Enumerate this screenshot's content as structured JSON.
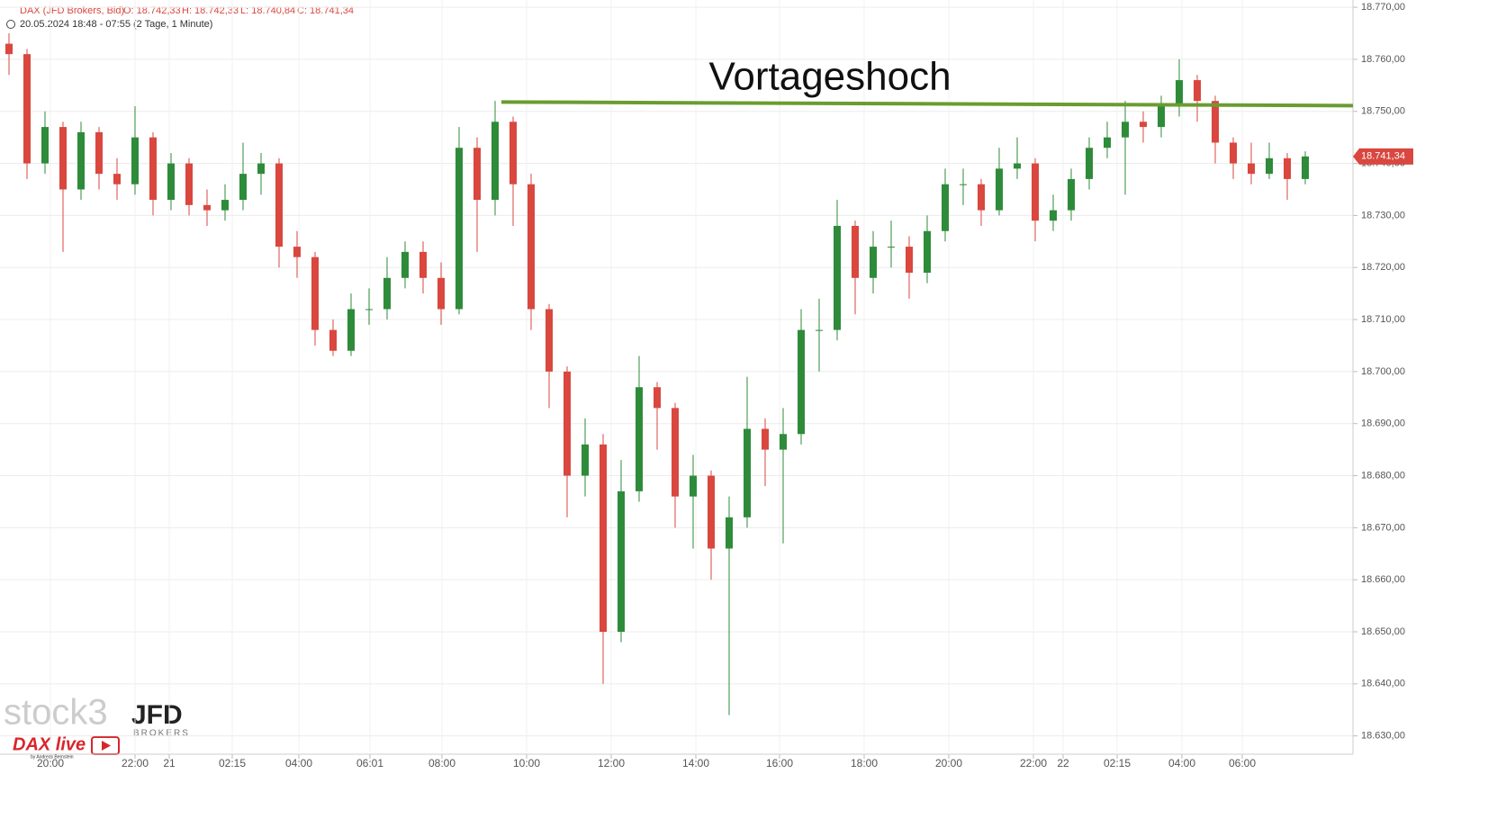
{
  "chart_data": {
    "type": "candlestick",
    "title": "DAX (JFD Brokers, Bid)",
    "ohlc_header": [
      "O: 18.742,33",
      "H: 18.742,33",
      "L: 18.740,84",
      "C: 18.741,34"
    ],
    "subtitle": "20.05.2024 18:48 - 07:55  (2 Tage, 1 Minute)",
    "x": [
      5,
      15,
      25,
      35,
      45,
      55,
      65,
      75,
      85,
      95,
      105,
      115,
      125,
      135,
      145,
      155,
      165,
      175,
      185,
      195,
      205,
      215,
      225,
      235,
      245,
      255,
      265,
      275,
      285,
      295,
      305,
      315,
      325,
      335,
      345,
      355,
      365,
      375,
      385,
      395,
      405,
      415,
      425,
      435,
      445,
      455,
      465,
      475,
      485,
      495,
      505,
      515,
      525,
      535,
      545,
      555,
      565,
      575,
      585,
      595,
      605,
      615,
      625,
      635,
      645,
      655,
      665,
      675,
      685,
      695,
      705,
      715,
      725
    ],
    "open": [
      18763,
      18761,
      18740,
      18747,
      18735,
      18746,
      18738,
      18736,
      18745,
      18733,
      18740,
      18732,
      18731,
      18733,
      18738,
      18740,
      18724,
      18722,
      18708,
      18704,
      18712,
      18712,
      18718,
      18723,
      18718,
      18712,
      18743,
      18733,
      18748,
      18736,
      18712,
      18700,
      18680,
      18686,
      18650,
      18677,
      18697,
      18693,
      18676,
      18680,
      18666,
      18672,
      18689,
      18685,
      18688,
      18708,
      18708,
      18728,
      18718,
      18724,
      18724,
      18719,
      18727,
      18736,
      18736,
      18731,
      18739,
      18740,
      18729,
      18731,
      18737,
      18743,
      18745,
      18748,
      18747,
      18751,
      18756,
      18752,
      18744,
      18740,
      18738,
      18741,
      18737
    ],
    "high": [
      18765,
      18762,
      18750,
      18748,
      18748,
      18747,
      18741,
      18751,
      18746,
      18742,
      18741,
      18735,
      18736,
      18744,
      18742,
      18741,
      18727,
      18723,
      18710,
      18715,
      18716,
      18722,
      18725,
      18725,
      18721,
      18747,
      18745,
      18752,
      18749,
      18738,
      18713,
      18701,
      18691,
      18688,
      18683,
      18703,
      18698,
      18694,
      18684,
      18681,
      18676,
      18699,
      18691,
      18693,
      18712,
      18714,
      18733,
      18729,
      18727,
      18729,
      18726,
      18730,
      18739,
      18739,
      18737,
      18743,
      18745,
      18741,
      18734,
      18739,
      18745,
      18748,
      18752,
      18750,
      18753,
      18760,
      18757,
      18753,
      18745,
      18744,
      18744,
      18742,
      18742.33
    ],
    "low": [
      18757,
      18737,
      18738,
      18723,
      18733,
      18735,
      18733,
      18734,
      18730,
      18731,
      18730,
      18728,
      18729,
      18731,
      18734,
      18720,
      18718,
      18705,
      18703,
      18703,
      18709,
      18710,
      18716,
      18715,
      18709,
      18711,
      18723,
      18730,
      18728,
      18708,
      18693,
      18672,
      18676,
      18640,
      18648,
      18675,
      18685,
      18670,
      18666,
      18660,
      18634,
      18670,
      18678,
      18667,
      18686,
      18700,
      18706,
      18711,
      18715,
      18720,
      18714,
      18717,
      18725,
      18732,
      18728,
      18730,
      18737,
      18725,
      18727,
      18729,
      18735,
      18741,
      18734,
      18744,
      18745,
      18749,
      18748,
      18740,
      18737,
      18736,
      18737,
      18733,
      18736
    ],
    "close": [
      18761,
      18740,
      18747,
      18735,
      18746,
      18738,
      18736,
      18745,
      18733,
      18740,
      18732,
      18731,
      18733,
      18738,
      18740,
      18724,
      18722,
      18708,
      18704,
      18712,
      18712,
      18718,
      18723,
      18718,
      18712,
      18743,
      18733,
      18748,
      18736,
      18712,
      18700,
      18680,
      18686,
      18650,
      18677,
      18697,
      18693,
      18676,
      18680,
      18666,
      18672,
      18689,
      18685,
      18688,
      18708,
      18708,
      18728,
      18718,
      18724,
      18724,
      18719,
      18727,
      18736,
      18736,
      18731,
      18739,
      18740,
      18729,
      18731,
      18737,
      18743,
      18745,
      18748,
      18747,
      18751,
      18756,
      18752,
      18744,
      18740,
      18738,
      18741,
      18737,
      18741.34
    ],
    "up_color": "#2e8b3a",
    "down_color": "#d9473f",
    "last_value_label": "18.741,34",
    "xlim": [
      0,
      751.5
    ],
    "ylim": [
      18627,
      18771.4
    ],
    "xticks": [
      {
        "value": 28,
        "label": "20:00"
      },
      {
        "value": 75,
        "label": "22:00"
      },
      {
        "value": 94,
        "label": "21"
      },
      {
        "value": 129,
        "label": "02:15"
      },
      {
        "value": 166,
        "label": "04:00"
      },
      {
        "value": 205.5,
        "label": "06:01"
      },
      {
        "value": 245.5,
        "label": "08:00"
      },
      {
        "value": 292.5,
        "label": "10:00"
      },
      {
        "value": 339.5,
        "label": "12:00"
      },
      {
        "value": 386.5,
        "label": "14:00"
      },
      {
        "value": 433,
        "label": "16:00"
      },
      {
        "value": 480,
        "label": "18:00"
      },
      {
        "value": 527,
        "label": "20:00"
      },
      {
        "value": 574,
        "label": "22:00"
      },
      {
        "value": 590.5,
        "label": "22"
      },
      {
        "value": 620.5,
        "label": "02:15"
      },
      {
        "value": 656.5,
        "label": "04:00"
      },
      {
        "value": 690,
        "label": "06:00"
      }
    ],
    "yticks": [
      {
        "value": 18630,
        "label": "18.630,00"
      },
      {
        "value": 18640,
        "label": "18.640,00"
      },
      {
        "value": 18650,
        "label": "18.650,00"
      },
      {
        "value": 18660,
        "label": "18.660,00"
      },
      {
        "value": 18670,
        "label": "18.670,00"
      },
      {
        "value": 18680,
        "label": "18.680,00"
      },
      {
        "value": 18690,
        "label": "18.690,00"
      },
      {
        "value": 18700,
        "label": "18.700,00"
      },
      {
        "value": 18710,
        "label": "18.710,00"
      },
      {
        "value": 18720,
        "label": "18.720,00"
      },
      {
        "value": 18730,
        "label": "18.730,00"
      },
      {
        "value": 18740,
        "label": "18.740,00"
      },
      {
        "value": 18750,
        "label": "18.750,00"
      },
      {
        "value": 18760,
        "label": "18.760,00"
      },
      {
        "value": 18770,
        "label": "18.770,00"
      }
    ],
    "grid": true,
    "level_line": {
      "text": "Vortageshoch",
      "x": [
        278.5,
        751.5
      ],
      "values": [
        18751.8,
        18751.1
      ],
      "color": "#6a9c30"
    },
    "branding": {
      "logo": "stock3",
      "broker": "JFD",
      "broker_sub": "BROKERS",
      "show": "DAX live",
      "show_sub": "by Andreas Bernstein"
    }
  }
}
